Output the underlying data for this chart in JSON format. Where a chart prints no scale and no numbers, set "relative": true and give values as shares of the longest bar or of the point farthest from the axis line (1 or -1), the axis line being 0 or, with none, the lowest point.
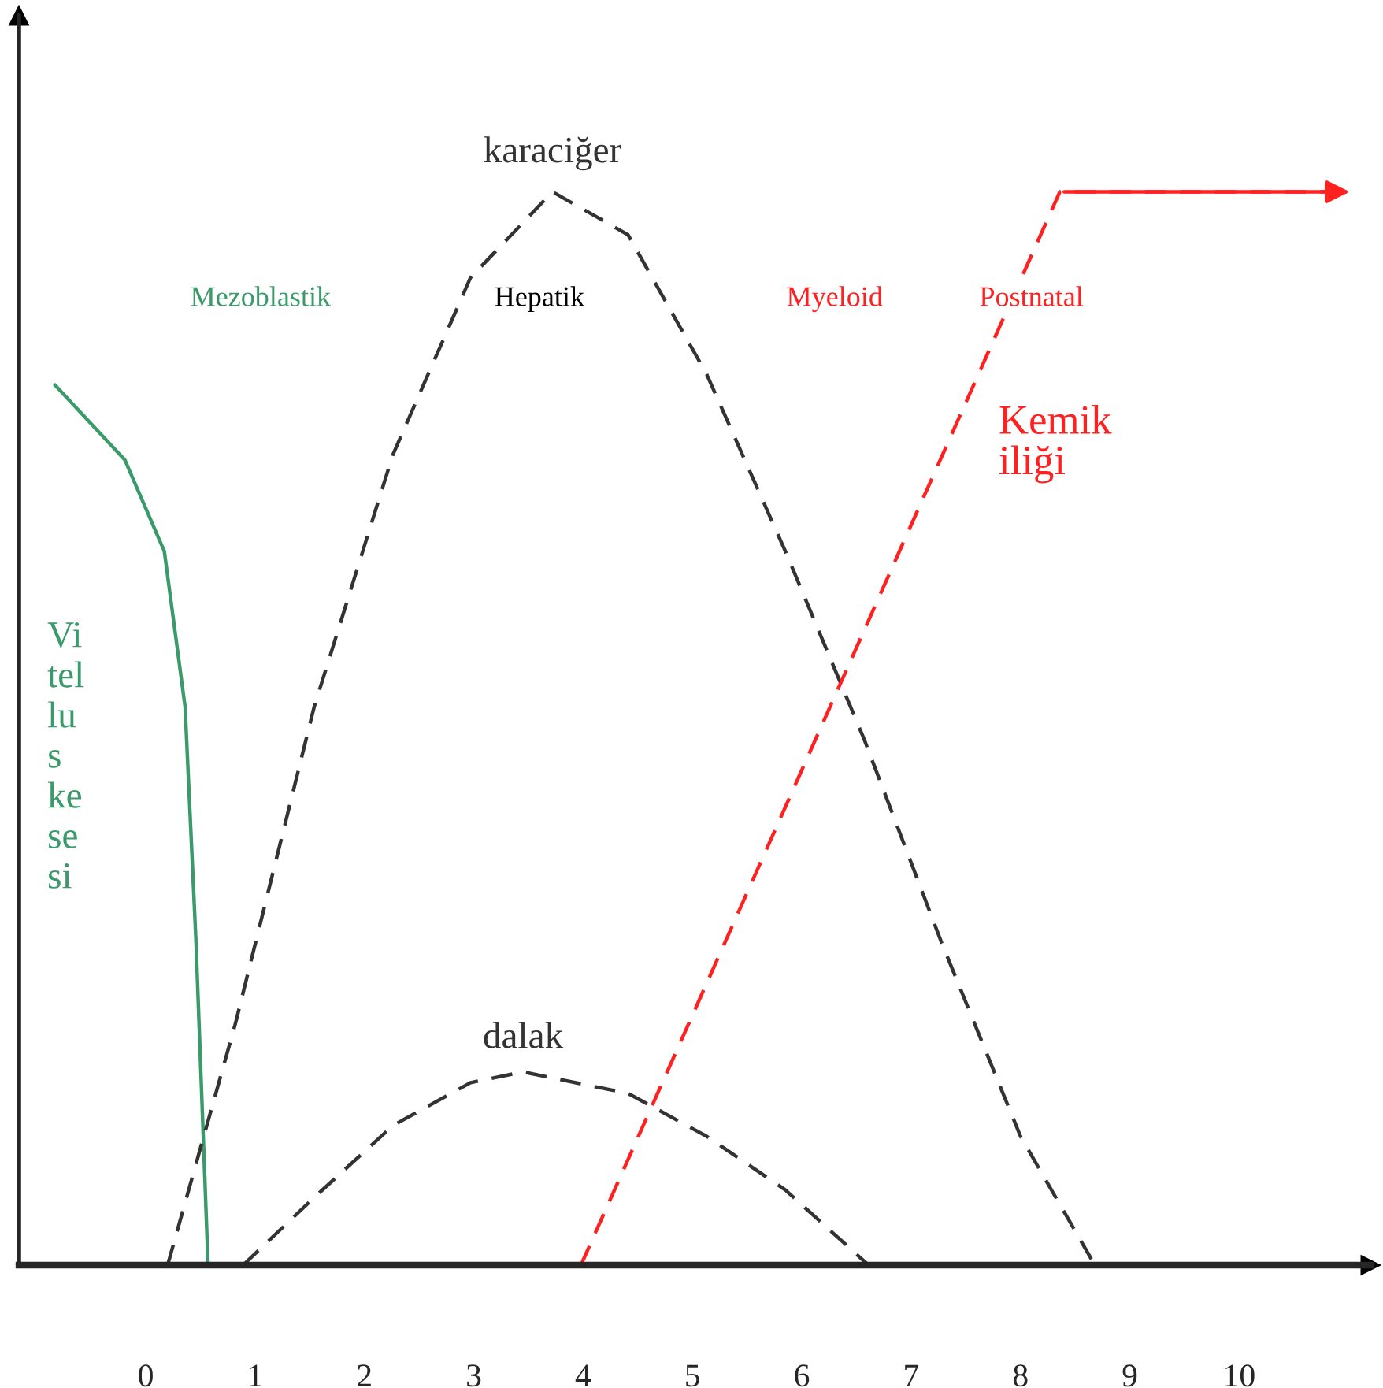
{
  "chart_data": {
    "type": "line",
    "relative": true,
    "xlim": [
      -1.16,
      11.2
    ],
    "xticks": [
      0,
      1,
      2,
      3,
      4,
      5,
      6,
      7,
      8,
      9,
      10
    ],
    "grid": false,
    "legend": false,
    "marker": "none",
    "series": [
      {
        "name": "Vi\ntel\nlu\ns\nke\nse\nsi",
        "color": "#3a9a6a",
        "line_style": "solid",
        "x": [
          -0.83,
          -0.19,
          0.17,
          0.36,
          0.46,
          0.57
        ],
        "values": [
          0.82,
          0.75,
          0.665,
          0.52,
          0.3,
          0
        ]
      },
      {
        "name": "karaciğer",
        "color": "#333333",
        "line_style": "dashed",
        "x": [
          0.2,
          0.82,
          1.54,
          2.26,
          2.97,
          3.72,
          4.41,
          5.13,
          5.85,
          6.57,
          7.28,
          8.0,
          8.68
        ],
        "values": [
          0,
          0.225,
          0.52,
          0.755,
          0.92,
          1.0,
          0.96,
          0.83,
          0.665,
          0.49,
          0.3,
          0.12,
          0
        ]
      },
      {
        "name": "dalak",
        "color": "#333333",
        "line_style": "dashed",
        "x": [
          0.89,
          1.54,
          2.26,
          2.97,
          3.45,
          4.41,
          5.13,
          5.85,
          6.61
        ],
        "values": [
          0,
          0.063,
          0.13,
          0.17,
          0.18,
          0.16,
          0.12,
          0.07,
          0
        ]
      },
      {
        "name": "Kemik\niliği",
        "color": "#ff2020",
        "line_style": "dashed",
        "x": [
          3.98,
          8.36,
          11.05
        ],
        "values": [
          0,
          1.0,
          1.0
        ]
      }
    ],
    "annotations": [
      "Mezoblastik",
      "Hepatik",
      "Myeloid",
      "Postnatal"
    ]
  }
}
